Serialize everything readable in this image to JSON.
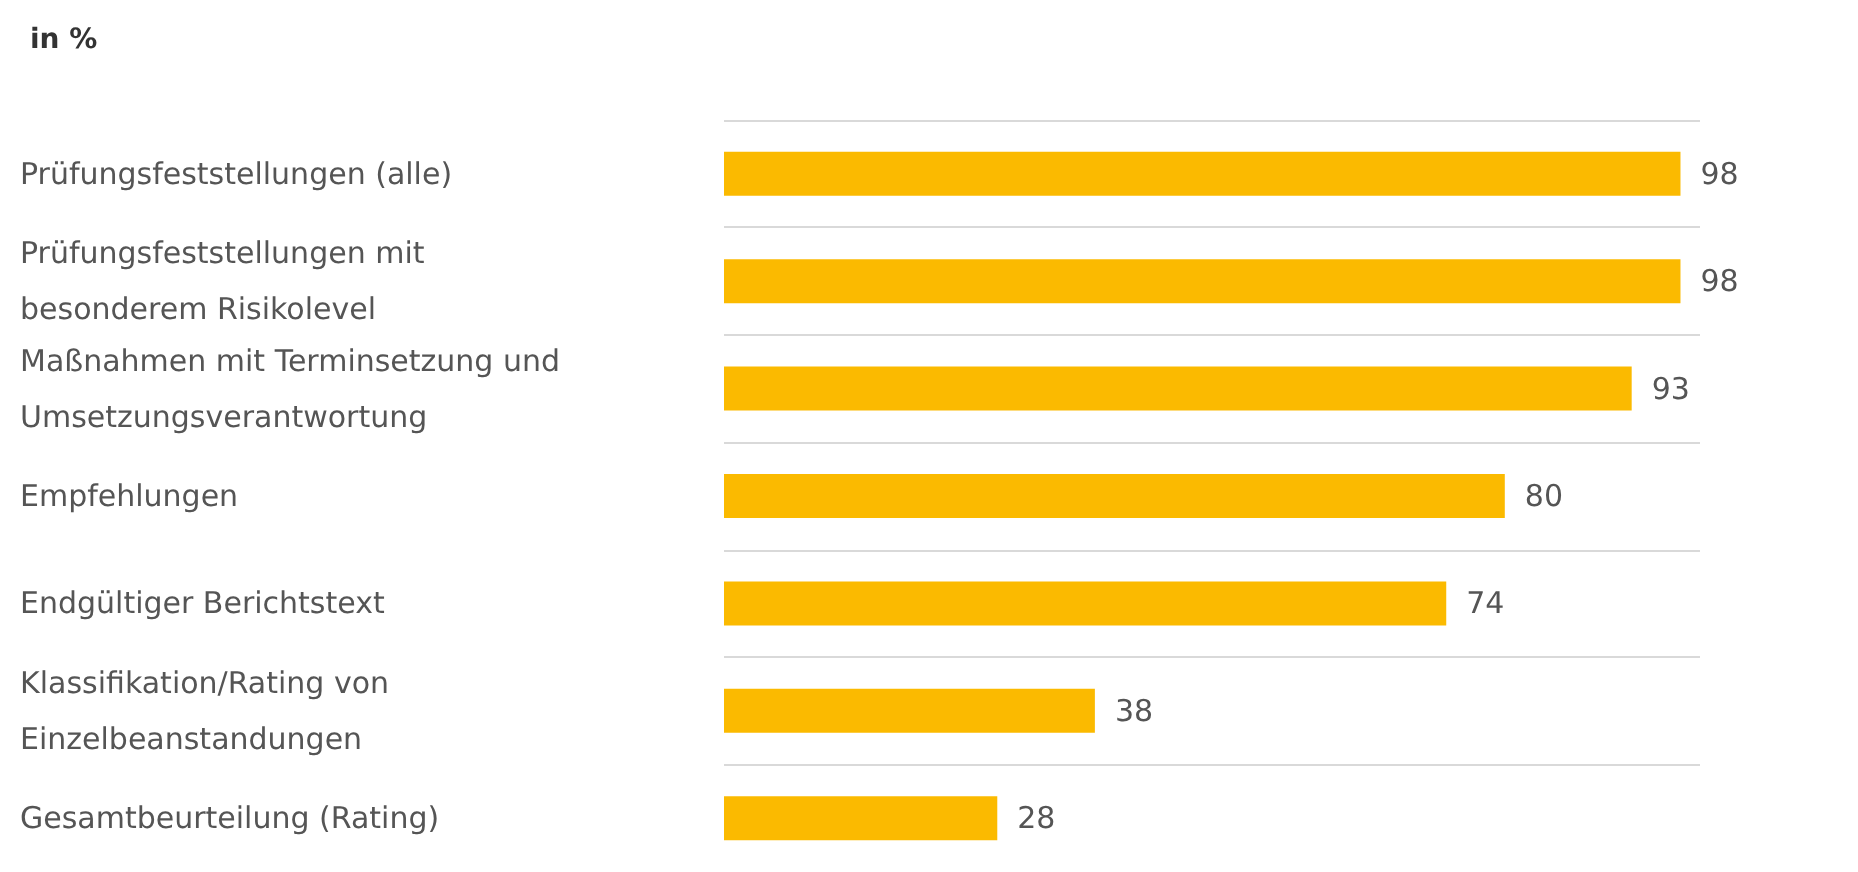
{
  "chart_data": {
    "type": "bar",
    "orientation": "horizontal",
    "title": "in %",
    "categories": [
      "Prüfungsfeststellungen (alle)",
      "Prüfungsfeststellungen mit besonderem Risikolevel",
      "Maßnahmen mit Terminsetzung und Umsetzungsverantwortung",
      "Empfehlungen",
      "Endgültiger Berichtstext",
      "Klassifikation/Rating von Einzelbeanstandungen",
      "Gesamtbeurteilung (Rating)"
    ],
    "values": [
      98,
      98,
      93,
      80,
      74,
      38,
      28
    ],
    "color": "#fbba00",
    "data_labels": true,
    "grid": "y"
  }
}
